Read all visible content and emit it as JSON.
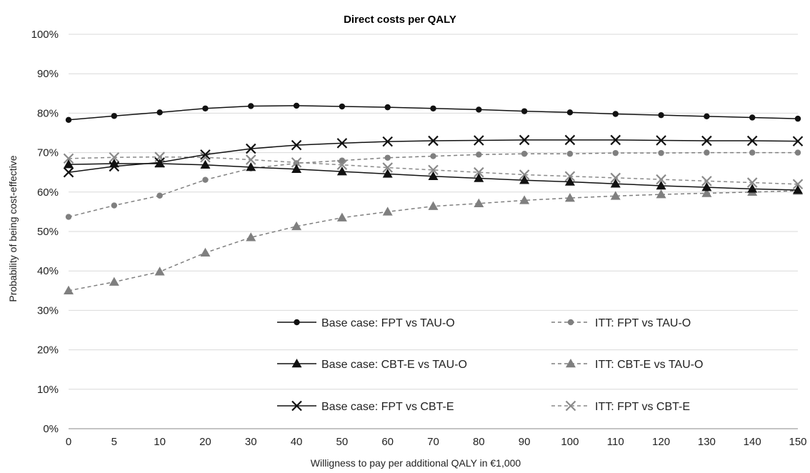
{
  "chart_data": {
    "type": "line",
    "title": "Direct costs per QALY",
    "xlabel": "Willigness to pay per additional QALY  in €1,000",
    "ylabel": "Probability of being cost-effective",
    "x": [
      "0",
      "5",
      "10",
      "20",
      "30",
      "40",
      "50",
      "60",
      "70",
      "80",
      "90",
      "100",
      "110",
      "120",
      "130",
      "140",
      "150"
    ],
    "ylim": [
      0,
      100
    ],
    "yticks": [
      "0%",
      "10%",
      "20%",
      "30%",
      "40%",
      "50%",
      "60%",
      "70%",
      "80%",
      "90%",
      "100%"
    ],
    "grid": true,
    "legend_position": "bottom-center",
    "series": [
      {
        "name": "Base case: FPT vs TAU-O",
        "style": "solid",
        "marker": "circle",
        "color": "#111111",
        "values": [
          78.3,
          79.3,
          80.2,
          81.2,
          81.8,
          81.9,
          81.7,
          81.5,
          81.2,
          80.9,
          80.5,
          80.2,
          79.8,
          79.5,
          79.2,
          78.9,
          78.6
        ]
      },
      {
        "name": "ITT: FPT vs TAU-O",
        "style": "dashed",
        "marker": "circle",
        "color": "#7f7f7f",
        "values": [
          53.7,
          56.6,
          59.1,
          63.1,
          66.0,
          67.3,
          68.0,
          68.7,
          69.1,
          69.5,
          69.7,
          69.7,
          69.9,
          69.9,
          70.0,
          70.0,
          70.0
        ]
      },
      {
        "name": "Base case: CBT-E vs TAU-O",
        "style": "solid",
        "marker": "triangle",
        "color": "#111111",
        "values": [
          67.0,
          67.2,
          67.2,
          66.9,
          66.3,
          65.8,
          65.2,
          64.6,
          64.0,
          63.5,
          63.0,
          62.6,
          62.1,
          61.6,
          61.2,
          60.8,
          60.5
        ]
      },
      {
        "name": "ITT: CBT-E vs TAU-O",
        "style": "dashed",
        "marker": "triangle",
        "color": "#7f7f7f",
        "values": [
          35.0,
          37.2,
          39.8,
          44.6,
          48.5,
          51.3,
          53.5,
          55.0,
          56.4,
          57.1,
          57.9,
          58.5,
          59.0,
          59.4,
          59.7,
          60.0,
          60.3
        ]
      },
      {
        "name": "Base case: FPT vs CBT-E",
        "style": "solid",
        "marker": "x",
        "color": "#111111",
        "values": [
          65.0,
          66.5,
          67.5,
          69.5,
          71.0,
          71.9,
          72.4,
          72.8,
          73.0,
          73.1,
          73.2,
          73.2,
          73.2,
          73.1,
          73.0,
          73.0,
          72.9
        ]
      },
      {
        "name": "ITT: FPT vs CBT-E",
        "style": "dashed",
        "marker": "x",
        "color": "#8a8a8a",
        "values": [
          68.5,
          68.8,
          68.9,
          68.8,
          68.2,
          67.5,
          66.9,
          66.2,
          65.6,
          65.0,
          64.4,
          64.0,
          63.6,
          63.2,
          62.8,
          62.4,
          62.0
        ]
      }
    ]
  }
}
